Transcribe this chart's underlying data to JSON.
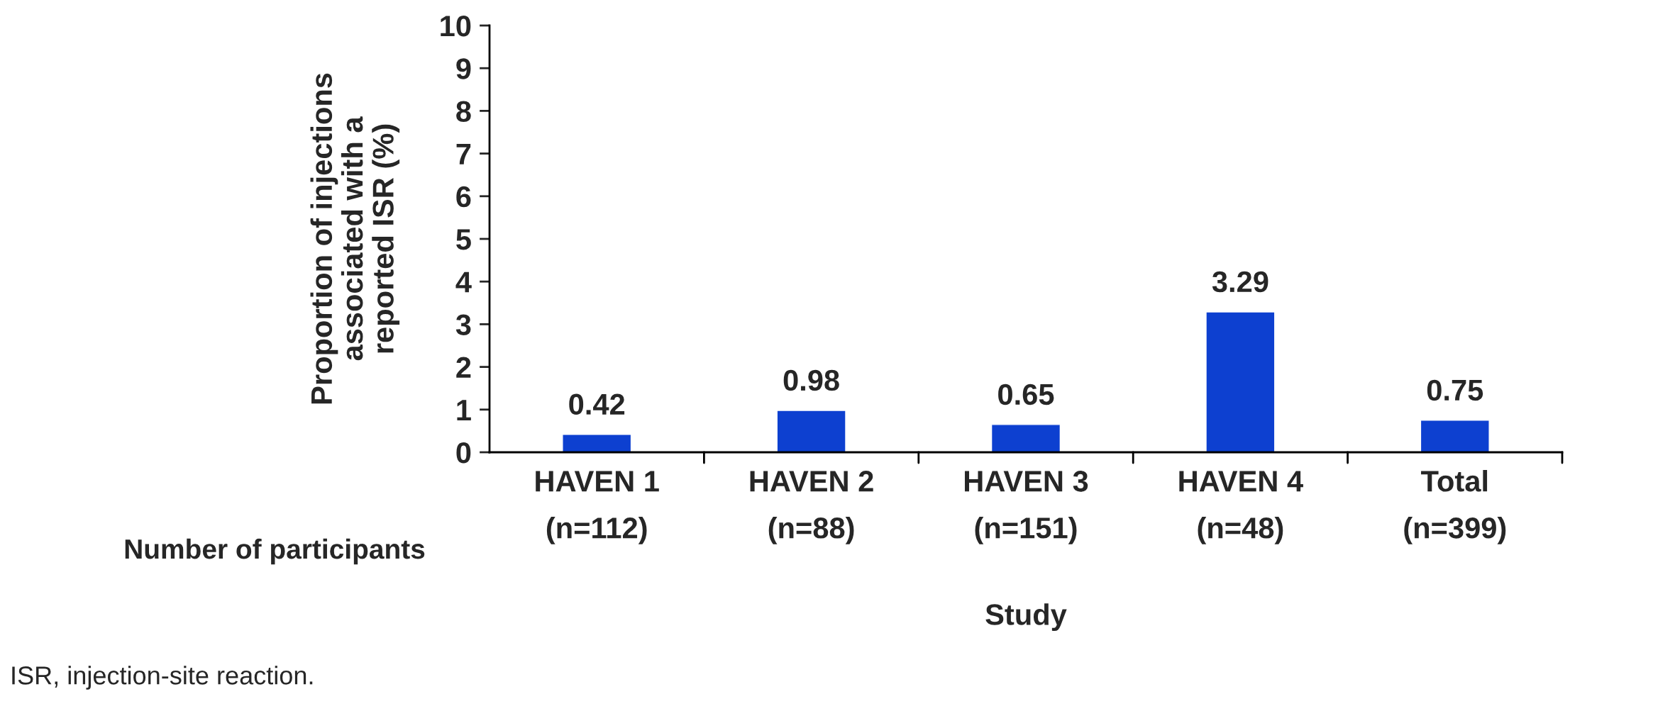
{
  "chart_data": {
    "type": "bar",
    "categories": [
      "HAVEN 1\n(n=112)",
      "HAVEN 2\n(n=88)",
      "HAVEN 3\n(n=151)",
      "HAVEN 4\n(n=48)",
      "Total\n(n=399)"
    ],
    "values": [
      0.42,
      0.98,
      0.65,
      3.29,
      0.75
    ],
    "color": "#0d40d0",
    "xlabel": "Study",
    "ylabel": "Proportion of injections\nassociated with a\nreported ISR (%)",
    "ylim": [
      0,
      10
    ],
    "yticks": [
      0,
      1,
      2,
      3,
      4,
      5,
      6,
      7,
      8,
      9,
      10
    ],
    "data_labels": true,
    "grid": false,
    "legend": false,
    "annotations": [
      "Number of participants",
      "ISR, injection-site reaction."
    ]
  }
}
